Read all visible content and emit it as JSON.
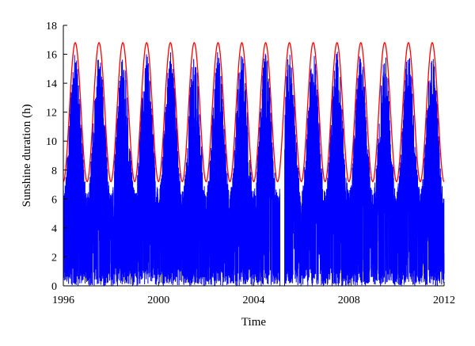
{
  "chart_data": {
    "type": "line",
    "title": "",
    "xlabel": "Time",
    "ylabel": "Sunshine duration (h)",
    "xlim": [
      1996,
      2012
    ],
    "ylim": [
      0,
      18
    ],
    "x_ticks": [
      "1996",
      "2000",
      "2004",
      "2008",
      "2012"
    ],
    "y_ticks": [
      "0",
      "2",
      "4",
      "6",
      "8",
      "10",
      "12",
      "14",
      "16",
      "18"
    ],
    "grid": false,
    "legend": "none",
    "series": [
      {
        "color": "#0000ff",
        "note_kind": "daily observed",
        "x_start": 1996.0,
        "x_end": 2012.0,
        "yearly_peak_max": 16.2,
        "observation_gaps": [
          [
            2005.1,
            2005.3
          ]
        ]
      },
      {
        "color": "#ff0000",
        "note_kind": "theoretical maximum",
        "x_start": 1996.0,
        "x_end": 2012.0,
        "peak": 16.8,
        "trough": 7.2,
        "period_years": 1
      }
    ]
  }
}
